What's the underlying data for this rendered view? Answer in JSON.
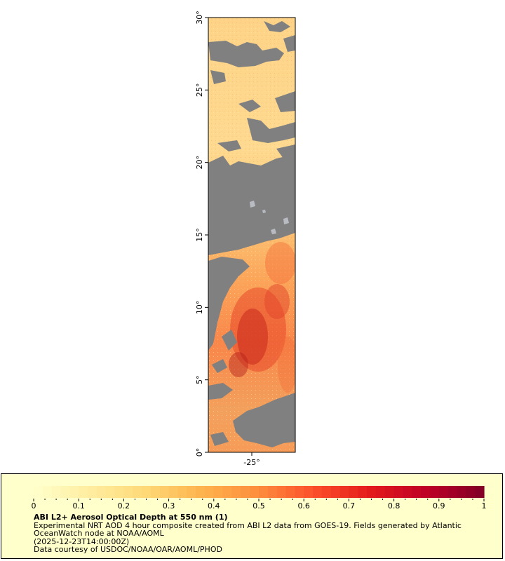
{
  "map": {
    "x_ticks": [
      {
        "value": -25,
        "label": "-25°"
      }
    ],
    "y_ticks": [
      {
        "value": 0,
        "label": "0°"
      },
      {
        "value": 5,
        "label": "5°"
      },
      {
        "value": 10,
        "label": "10°"
      },
      {
        "value": 15,
        "label": "15°"
      },
      {
        "value": 20,
        "label": "20°"
      },
      {
        "value": 25,
        "label": "25°"
      },
      {
        "value": 30,
        "label": "30°"
      }
    ],
    "lat_range": [
      0,
      30
    ],
    "lon_range": [
      -28,
      -22
    ],
    "no_data_color": "#808080",
    "land_color": "#b8bcc2"
  },
  "legend": {
    "title": "ABI L2+ Aerosol Optical Depth at 550 nm (1)",
    "description_line1": "Experimental NRT AOD 4 hour composite created from ABI L2 data from GOES-19. Fields generated by Atlantic",
    "description_line2": "OceanWatch node at NOAA/AOML",
    "timestamp": "(2025-12-23T14:00:00Z)",
    "credit": "Data courtesy of USDOC/NOAA/OAR/AOML/PHOD",
    "colorbar": {
      "min": 0,
      "max": 1,
      "tick_labels": [
        "0",
        "0.1",
        "0.2",
        "0.3",
        "0.4",
        "0.5",
        "0.6",
        "0.7",
        "0.8",
        "0.9",
        "1"
      ],
      "colors": [
        "#ffffcc",
        "#ffeda0",
        "#fed976",
        "#feb24c",
        "#fd8d3c",
        "#fc4e2a",
        "#e31a1c",
        "#bd0026",
        "#800026"
      ]
    }
  }
}
